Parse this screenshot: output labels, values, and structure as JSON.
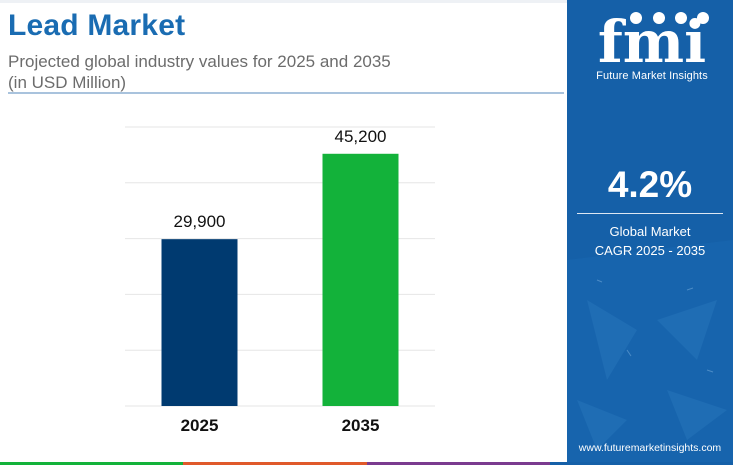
{
  "header": {
    "title": "Lead Market",
    "subtitle_line1": "Projected global industry values for 2025 and 2035",
    "subtitle_line2": "(in USD Million)"
  },
  "chart_data": {
    "type": "bar",
    "categories": [
      "2025",
      "2035"
    ],
    "values": [
      29900,
      45200
    ],
    "value_labels": [
      "29,900",
      "45,200"
    ],
    "bar_colors": [
      "#003a70",
      "#13b23a"
    ],
    "title": "",
    "xlabel": "",
    "ylabel": "",
    "ylim": [
      0,
      50000
    ],
    "grid": true
  },
  "side_panel": {
    "brand_letters": "fmi",
    "brand_name": "Future Market Insights",
    "cagr_value": "4.2%",
    "cagr_label_line1": "Global Market",
    "cagr_label_line2": "CAGR 2025 - 2035",
    "website": "www.futuremarketinsights.com",
    "background_color": "#1560a8"
  },
  "bottom_strip_colors": [
    "#13b23a",
    "#e0592a",
    "#7a3b8f",
    "#1560a8"
  ]
}
